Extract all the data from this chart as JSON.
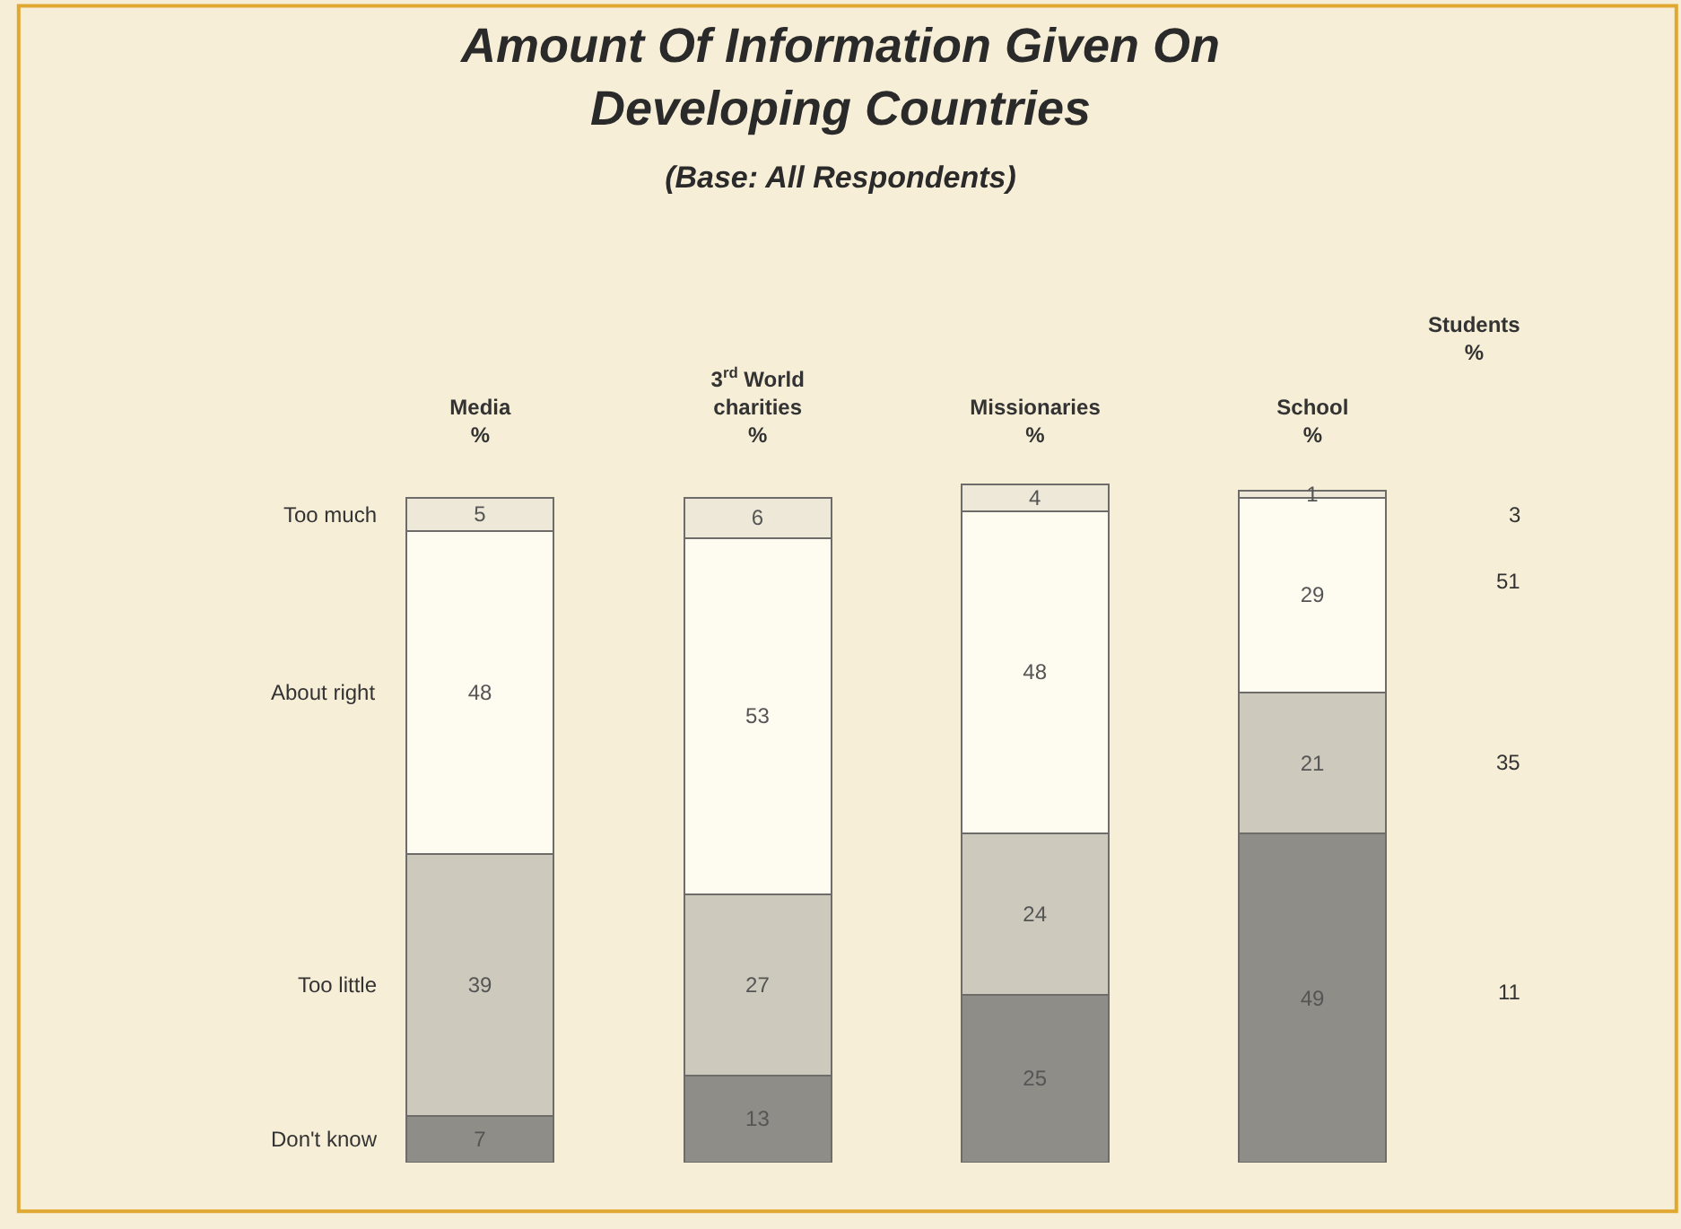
{
  "chart_data": {
    "type": "bar",
    "stacked": true,
    "title": "Amount Of Information Given On\nDeveloping Countries",
    "subtitle": "(Base: All Respondents)",
    "categories": [
      "Media\n%",
      "3$^{rd}$ World\ncharities\n%",
      "Missionaries\n%",
      "School\n%"
    ],
    "series": [
      {
        "name": "Don't know",
        "color": "#8f8d87",
        "values": [
          7,
          13,
          25,
          49
        ]
      },
      {
        "name": "Too little",
        "color": "#cdc9bc",
        "values": [
          39,
          27,
          24,
          21
        ]
      },
      {
        "name": "About right",
        "color": "#fefbf0",
        "values": [
          48,
          53,
          48,
          29
        ]
      },
      {
        "name": "Too much",
        "color": "#eee8d8",
        "values": [
          5,
          6,
          4,
          1
        ]
      }
    ],
    "data_labels": true,
    "tick_labels": "x",
    "grid": false,
    "legend": false,
    "annotations": [
      "Students\n%",
      "3",
      "51",
      "35",
      "11"
    ]
  }
}
